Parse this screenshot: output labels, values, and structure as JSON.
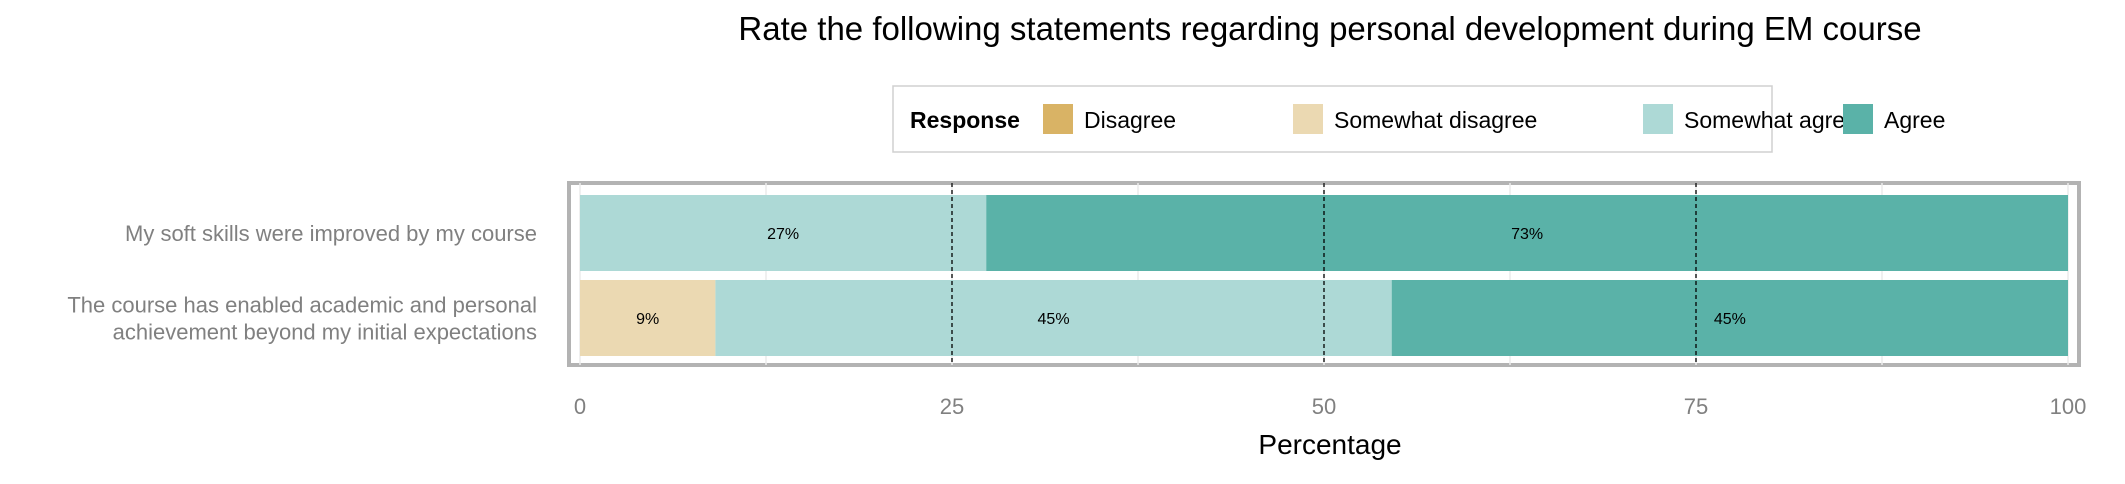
{
  "chart_data": {
    "type": "bar",
    "orientation": "horizontal",
    "stacked": true,
    "title": "Rate the following statements regarding personal development during EM course",
    "xlabel": "Percentage",
    "ylabel": "",
    "xlim": [
      0,
      100
    ],
    "x_ticks": [
      "0",
      "25",
      "50",
      "75",
      "100"
    ],
    "legend": {
      "title": "Response",
      "position": "top",
      "entries": [
        "Disagree",
        "Somewhat disagree",
        "Somewhat agree",
        "Agree"
      ]
    },
    "categories": [
      [
        "My soft skills were improved by my course"
      ],
      [
        "The course has enabled academic and personal",
        "achievement beyond my initial expectations"
      ]
    ],
    "series": [
      {
        "name": "Disagree",
        "color": "#D9B365",
        "values": [
          0,
          0
        ],
        "labels": [
          "",
          ""
        ]
      },
      {
        "name": "Somewhat disagree",
        "color": "#EBD9B2",
        "values": [
          0,
          9.1
        ],
        "labels": [
          "",
          "9%"
        ]
      },
      {
        "name": "Somewhat agree",
        "color": "#ADD9D6",
        "values": [
          27.3,
          45.45
        ],
        "labels": [
          "27%",
          "45%"
        ]
      },
      {
        "name": "Agree",
        "color": "#5AB2A8",
        "values": [
          72.7,
          45.45
        ],
        "labels": [
          "73%",
          "45%"
        ]
      }
    ],
    "reference_lines_x": [
      25,
      50,
      75
    ],
    "grid": true
  }
}
